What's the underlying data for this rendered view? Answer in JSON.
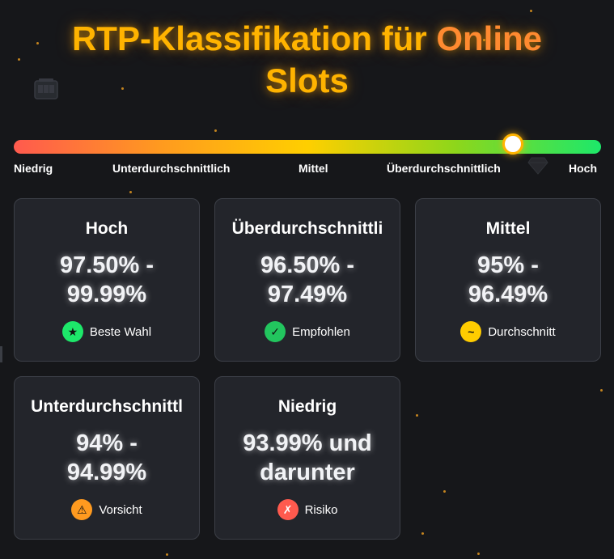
{
  "page": {
    "title_part1": "RTP-Klassifikation für",
    "title_part2": "Online",
    "title_part3": "Slots"
  },
  "scale": {
    "labels": [
      "Niedrig",
      "Unterdurchschnittlich",
      "Mittel",
      "Überdurchschnittlich",
      "Hoch"
    ],
    "marker_position_percent": 85,
    "gradient_colors": [
      "#ff5a4e",
      "#ff9a1f",
      "#ffcf00",
      "#8fd61a",
      "#1de86a"
    ]
  },
  "decor": {
    "slot_icon": "slot-machine-icon",
    "diamond_icon": "diamond-icon"
  },
  "cards": [
    {
      "title": "Hoch",
      "range_line1": "97.50% -",
      "range_line2": "99.99%",
      "badge_symbol": "★",
      "badge_icon": "star-icon",
      "badge_label": "Beste Wahl",
      "badge_color": "#1de86a"
    },
    {
      "title": "Überdurchschnittli",
      "range_line1": "96.50% -",
      "range_line2": "97.49%",
      "badge_symbol": "✓",
      "badge_icon": "check-icon",
      "badge_label": "Empfohlen",
      "badge_color": "#22c55e"
    },
    {
      "title": "Mittel",
      "range_line1": "95% -",
      "range_line2": "96.49%",
      "badge_symbol": "~",
      "badge_icon": "tilde-icon",
      "badge_label": "Durchschnitt",
      "badge_color": "#ffcc00"
    },
    {
      "title": "Unterdurchschnittl",
      "range_line1": "94% -",
      "range_line2": "94.99%",
      "badge_symbol": "⚠",
      "badge_icon": "warning-icon",
      "badge_label": "Vorsicht",
      "badge_color": "#ff9a1f"
    },
    {
      "title": "Niedrig",
      "range_line1": "93.99% und",
      "range_line2": "darunter",
      "badge_symbol": "✗",
      "badge_icon": "cross-icon",
      "badge_label": "Risiko",
      "badge_color": "#ff5a4e"
    }
  ]
}
